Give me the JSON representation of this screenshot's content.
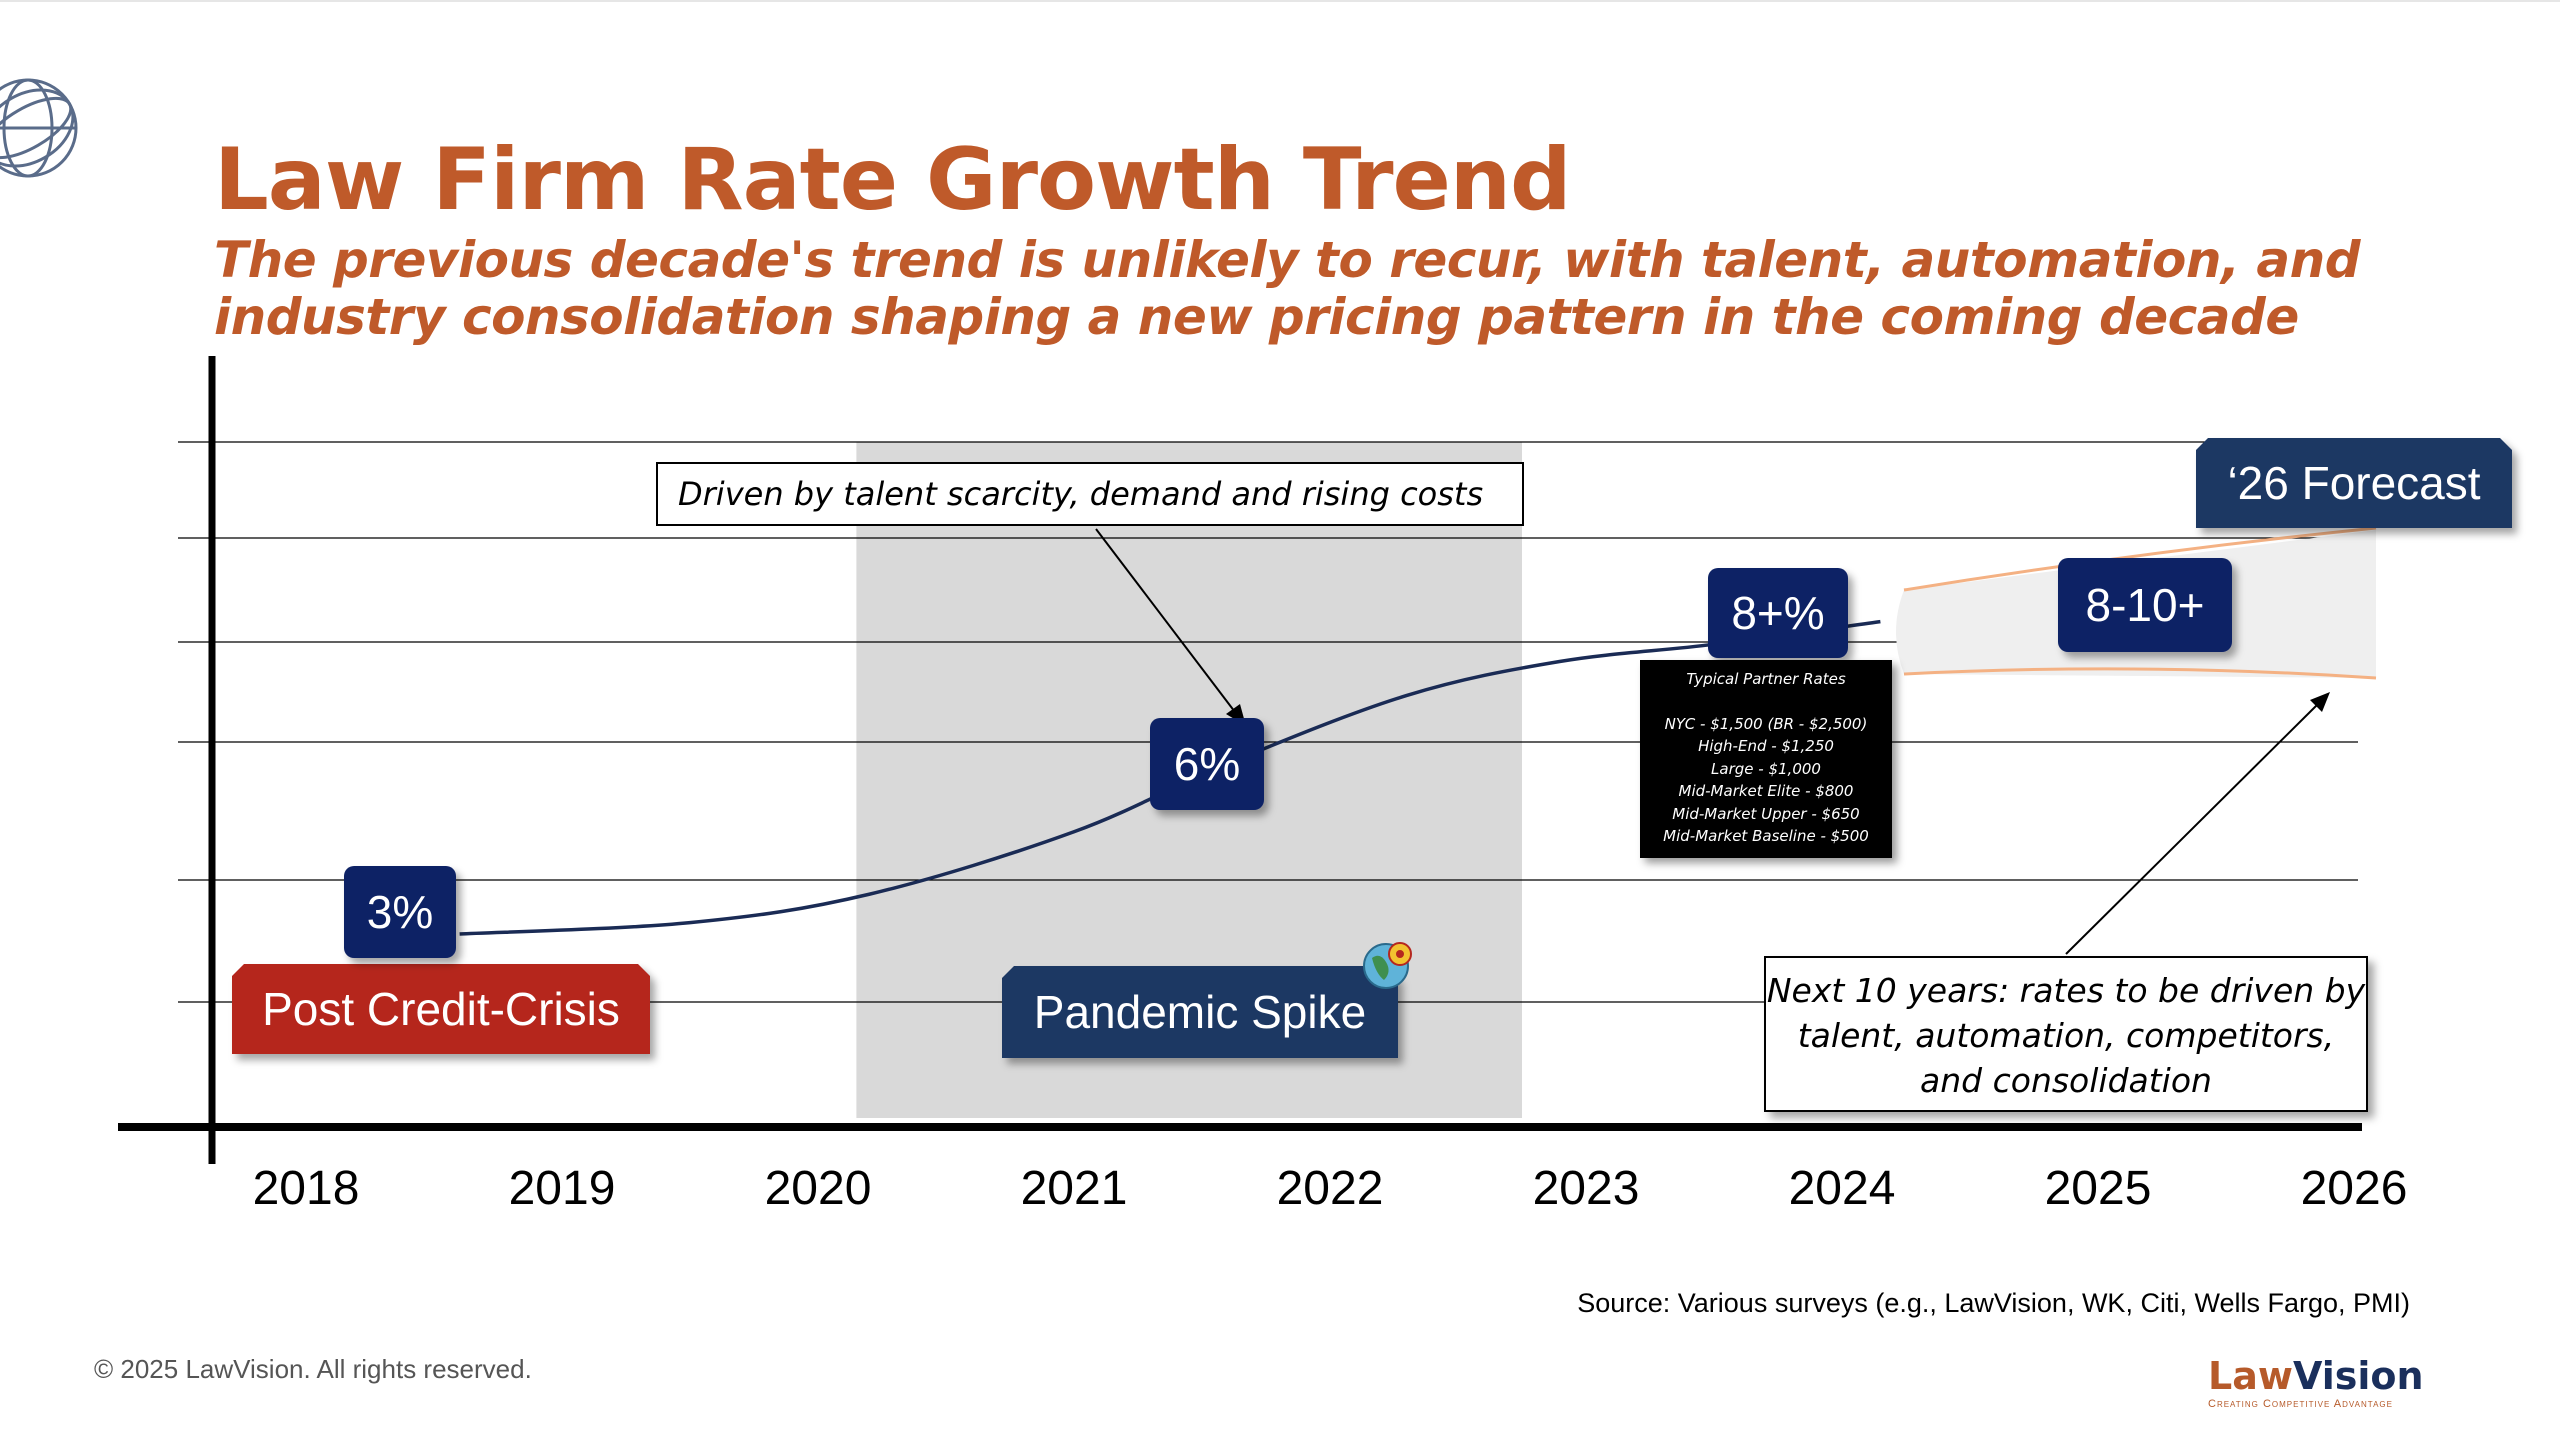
{
  "slide": {
    "title": "Law Firm Rate Growth Trend",
    "subtitle_line1": "The previous decade's trend is unlikely to recur, with talent, automation, and",
    "subtitle_line2": "industry consolidation shaping a new pricing pattern in the coming decade"
  },
  "chart_data": {
    "type": "line",
    "title": "Law Firm Rate Growth Trend",
    "x": [
      "2018",
      "2019",
      "2020",
      "2021",
      "2022",
      "2023",
      "2024",
      "2025",
      "2026"
    ],
    "xlabel": "",
    "ylabel": "",
    "grid": true,
    "series": [
      {
        "points": [
          [
            2018.6,
            3
          ],
          [
            2019.5,
            3.2
          ],
          [
            2020.2,
            3.7
          ],
          [
            2021.0,
            4.8
          ],
          [
            2021.6,
            6.0
          ],
          [
            2022.3,
            7.2
          ],
          [
            2022.9,
            7.8
          ],
          [
            2023.5,
            8.1
          ],
          [
            2024.15,
            8.5
          ]
        ]
      }
    ],
    "forecast_band": {
      "from": 2024.25,
      "to": 2026.1,
      "low": 8,
      "high": 10
    },
    "rate_badges": [
      {
        "year": 2018.35,
        "label": "3%"
      },
      {
        "year": 2021.5,
        "label": "6%"
      },
      {
        "year": 2023.75,
        "label": "8+%"
      },
      {
        "year": 2025.2,
        "label": "8-10+"
      }
    ],
    "periods": [
      {
        "label": "Post Credit-Crisis",
        "color": "#b5271f"
      },
      {
        "label": "Pandemic Spike",
        "color": "#1f3864",
        "shaded_from": 2020.15,
        "shaded_to": 2022.75
      },
      {
        "label": "‘26 Forecast",
        "color": "#1f3864"
      }
    ],
    "colors": {
      "badge": "#0f2465",
      "line": "#1a2b55",
      "shade": "#d9d9d9",
      "band_edge": "#f4b183"
    }
  },
  "callouts": {
    "top": "Driven by talent scarcity, demand and rising costs",
    "bottom": "Next 10 years: rates to be driven by talent, automation, competitors, and consolidation"
  },
  "rates_box": {
    "title": "Typical Partner Rates",
    "items": [
      "NYC - $1,500 (BR - $2,500)",
      "High-End - $1,250",
      "Large - $1,000",
      "Mid-Market Elite - $800",
      "Mid-Market Upper - $650",
      "Mid-Market Baseline - $500"
    ]
  },
  "footer": {
    "source": "Source: Various surveys (e.g., LawVision, WK, Citi, Wells Fargo, PMI)",
    "copyright": "© 2025 LawVision. All rights reserved.",
    "logo_part1": "Law",
    "logo_part2": "Vision",
    "logo_tagline": "Creating Competitive Advantage"
  },
  "icons": {
    "globe": "globe-logo-icon",
    "pandemic": "virus-globe-icon"
  }
}
